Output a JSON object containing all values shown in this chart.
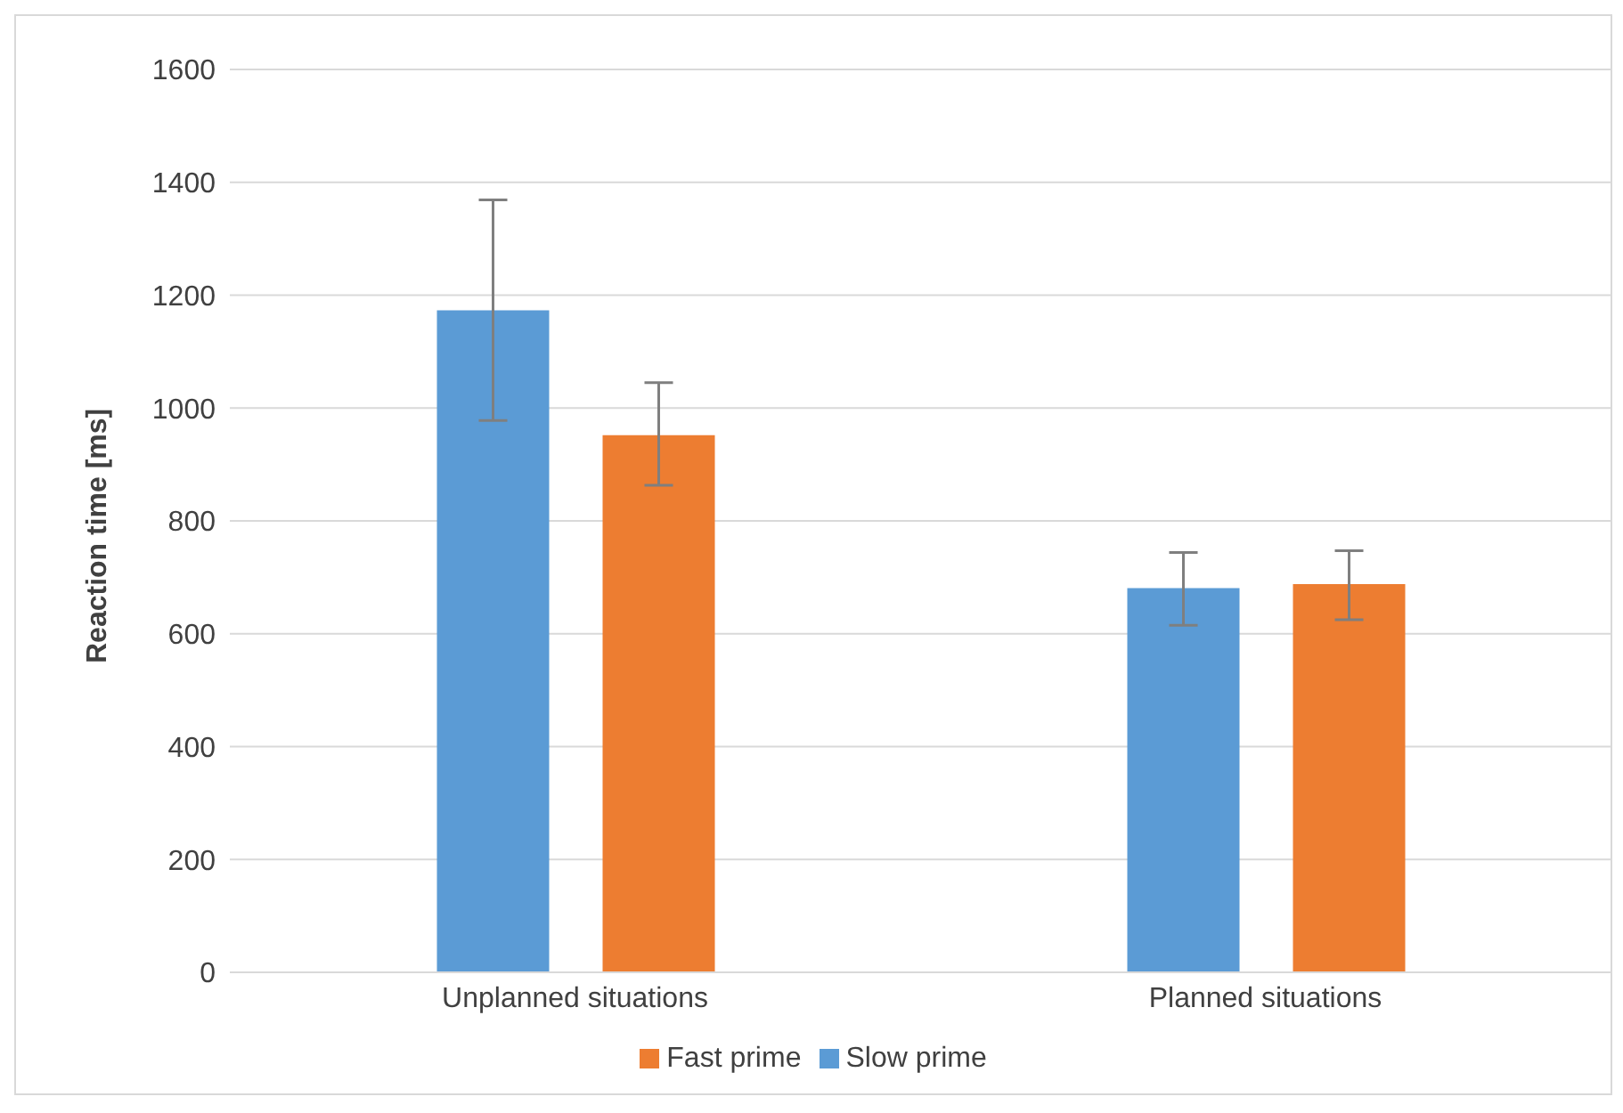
{
  "chart_data": {
    "type": "bar",
    "ylabel": "Reaction time [ms]",
    "categories": [
      "Unplanned situations",
      "Planned situations"
    ],
    "series": [
      {
        "name": "Slow prime",
        "color": "#5b9bd5",
        "values": [
          1173,
          681
        ],
        "errors": [
          [
            978,
            1369
          ],
          [
            615,
            744
          ]
        ]
      },
      {
        "name": "Fast prime",
        "color": "#ed7d31",
        "values": [
          952,
          688
        ],
        "errors": [
          [
            863,
            1045
          ],
          [
            625,
            747
          ]
        ]
      }
    ],
    "ylim": [
      0,
      1600
    ],
    "yticks": [
      0,
      200,
      400,
      600,
      800,
      1000,
      1200,
      1400,
      1600
    ],
    "grid": "y",
    "legend": "bottom"
  }
}
